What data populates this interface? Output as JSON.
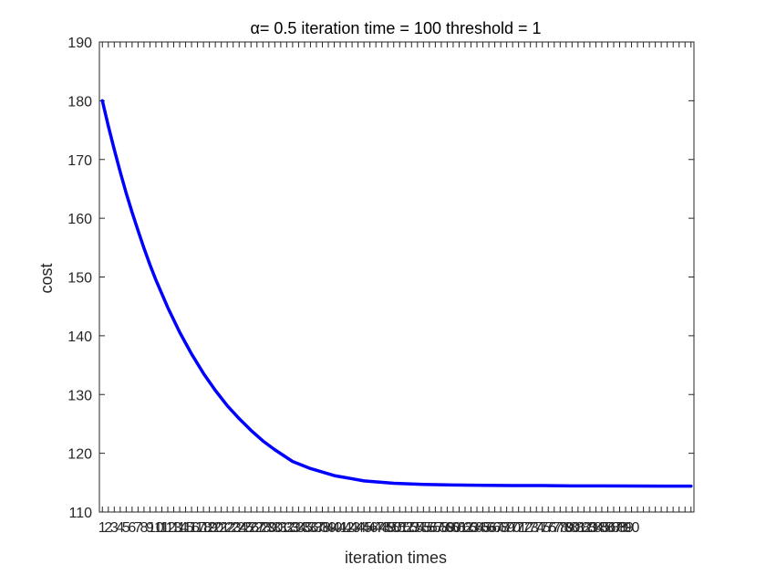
{
  "chart_data": {
    "type": "line",
    "title": "α= 0.5   iteration time = 100  threshold = 1",
    "xlabel": "iteration times",
    "ylabel": "cost",
    "xlim": [
      0.5,
      100.5
    ],
    "ylim": [
      110,
      190
    ],
    "y_ticks": [
      110,
      120,
      130,
      140,
      150,
      160,
      170,
      180,
      190
    ],
    "x_tick_labels": [
      "1",
      "2",
      "3",
      "4",
      "5",
      "6",
      "7",
      "8",
      "9",
      "10",
      "11",
      "12",
      "13",
      "14",
      "15",
      "16",
      "17",
      "18",
      "19",
      "20",
      "21",
      "22",
      "23",
      "24",
      "25",
      "26",
      "27",
      "28",
      "29",
      "30",
      "31",
      "32",
      "33",
      "34",
      "35",
      "36",
      "37",
      "38",
      "39",
      "40",
      "41",
      "42",
      "43",
      "44",
      "45",
      "46",
      "47",
      "48",
      "49",
      "50",
      "51",
      "52",
      "53",
      "54",
      "55",
      "56",
      "57",
      "58",
      "59",
      "60",
      "61",
      "62",
      "63",
      "64",
      "65",
      "66",
      "67",
      "68",
      "69",
      "70",
      "71",
      "72",
      "73",
      "74",
      "75",
      "76",
      "77",
      "78",
      "79",
      "80",
      "81",
      "82",
      "83",
      "84",
      "85",
      "86",
      "87",
      "88",
      "89",
      "90"
    ],
    "grid": false,
    "series": [
      {
        "color": "#0000ff",
        "x": [
          1,
          2,
          3,
          4,
          5,
          6,
          7,
          8,
          9,
          10,
          12,
          14,
          16,
          18,
          20,
          22,
          24,
          26,
          28,
          30,
          33,
          36,
          40,
          45,
          50,
          55,
          60,
          65,
          70,
          75,
          80,
          85,
          90,
          95,
          100
        ],
        "y": [
          180.0,
          175.7,
          171.7,
          167.9,
          164.3,
          161.0,
          157.9,
          154.9,
          152.1,
          149.5,
          144.8,
          140.6,
          136.9,
          133.6,
          130.7,
          128.1,
          125.9,
          123.9,
          122.1,
          120.6,
          118.6,
          117.4,
          116.2,
          115.3,
          114.9,
          114.7,
          114.6,
          114.55,
          114.5,
          114.5,
          114.45,
          114.45,
          114.42,
          114.4,
          114.4
        ]
      }
    ]
  }
}
